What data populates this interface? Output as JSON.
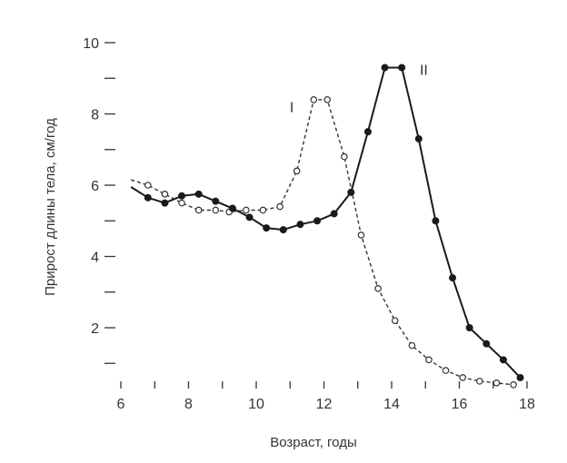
{
  "chart_data": {
    "type": "line",
    "title": "",
    "xlabel": "Возраст, годы",
    "ylabel": "Прирост длины тела, см/год",
    "xlim": [
      6,
      18
    ],
    "ylim": [
      0.4,
      10
    ],
    "x_ticks_major": [
      6,
      8,
      10,
      12,
      14,
      16,
      18
    ],
    "x_ticks_minor": [
      7,
      9,
      11,
      13,
      15,
      17
    ],
    "y_ticks_major": [
      2,
      4,
      6,
      8,
      10
    ],
    "y_ticks_minor": [
      1,
      3,
      5,
      7,
      9
    ],
    "grid": false,
    "legend": "none",
    "series": [
      {
        "name": "I",
        "style": "dashed",
        "marker": "open-circle",
        "color": "#333333",
        "lead_in": [
          [
            6.3,
            6.15
          ]
        ],
        "x": [
          6.8,
          7.3,
          7.8,
          8.3,
          8.8,
          9.2,
          9.7,
          10.2,
          10.7,
          11.2,
          11.7,
          12.1,
          12.6,
          13.1,
          13.6,
          14.1,
          14.6,
          15.1,
          15.6,
          16.1,
          16.6,
          17.1,
          17.6
        ],
        "values": [
          6.0,
          5.75,
          5.5,
          5.3,
          5.3,
          5.25,
          5.3,
          5.3,
          5.4,
          6.4,
          8.4,
          8.4,
          6.8,
          4.6,
          3.1,
          2.2,
          1.5,
          1.1,
          0.8,
          0.6,
          0.5,
          0.45,
          0.4
        ]
      },
      {
        "name": "II",
        "style": "solid",
        "marker": "filled-circle",
        "color": "#1a1a1a",
        "lead_in": [
          [
            6.3,
            5.95
          ]
        ],
        "x": [
          6.8,
          7.3,
          7.8,
          8.3,
          8.8,
          9.3,
          9.8,
          10.3,
          10.8,
          11.3,
          11.8,
          12.3,
          12.8,
          13.3,
          13.8,
          14.3,
          14.8,
          15.3,
          15.8,
          16.3,
          16.8,
          17.3,
          17.8
        ],
        "values": [
          5.65,
          5.5,
          5.7,
          5.75,
          5.55,
          5.35,
          5.1,
          4.8,
          4.75,
          4.9,
          5.0,
          5.2,
          5.8,
          7.5,
          9.3,
          9.3,
          7.3,
          5.0,
          3.4,
          2.0,
          1.55,
          1.1,
          0.6
        ]
      }
    ]
  }
}
